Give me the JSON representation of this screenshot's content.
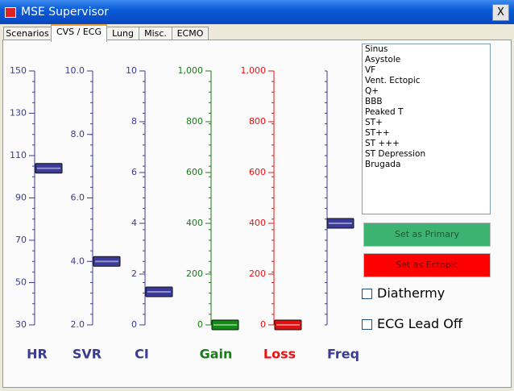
{
  "window": {
    "title": "MSE Supervisor",
    "close": "X"
  },
  "tabs": [
    "Scenarios",
    "CVS / ECG",
    "Lung",
    "Misc.",
    "ECMO"
  ],
  "sliders": [
    {
      "name": "HR",
      "color": "#3b3b8f",
      "ylim": [
        30,
        150
      ],
      "ticks": [
        30,
        50,
        70,
        90,
        110,
        130,
        150
      ],
      "value": 104
    },
    {
      "name": "SVR",
      "color": "#3b3b8f",
      "ylim": [
        2,
        10
      ],
      "ticks": [
        {
          "value": 2,
          "label": "2.0"
        },
        {
          "value": 4,
          "label": "4.0"
        },
        {
          "value": 6,
          "label": "6.0"
        },
        {
          "value": 8,
          "label": "8.0"
        },
        {
          "value": 10,
          "label": "10.0"
        }
      ],
      "value": 4
    },
    {
      "name": "CI",
      "color": "#3b3b8f",
      "ylim": [
        0,
        10
      ],
      "ticks": [
        0,
        2,
        4,
        6,
        8,
        10
      ],
      "value": 1.3
    },
    {
      "name": "Gain",
      "color": "#1b7a1b",
      "ylim": [
        0,
        1000
      ],
      "ticks": [
        0,
        200,
        400,
        600,
        800,
        {
          "value": 1000,
          "label": "1,000"
        }
      ],
      "value": 0
    },
    {
      "name": "Loss",
      "color": "#ee1111",
      "ylim": [
        0,
        1000
      ],
      "ticks": [
        0,
        200,
        400,
        600,
        800,
        {
          "value": 1000,
          "label": "1,000"
        }
      ],
      "value": 0
    }
  ],
  "freq": {
    "name": "Freq"
  },
  "rhythms": [
    "Sinus",
    "Asystole",
    "VF",
    "Vent. Ectopic",
    "Q+",
    "BBB",
    "Peaked T",
    "ST+",
    "ST++",
    "ST +++",
    "ST Depression",
    "Brugada"
  ],
  "buttons": {
    "primary": "Set as Primary",
    "ectopic": "Set as Ectopic"
  },
  "checkboxes": [
    "Diathermy",
    "ECG Lead Off"
  ]
}
